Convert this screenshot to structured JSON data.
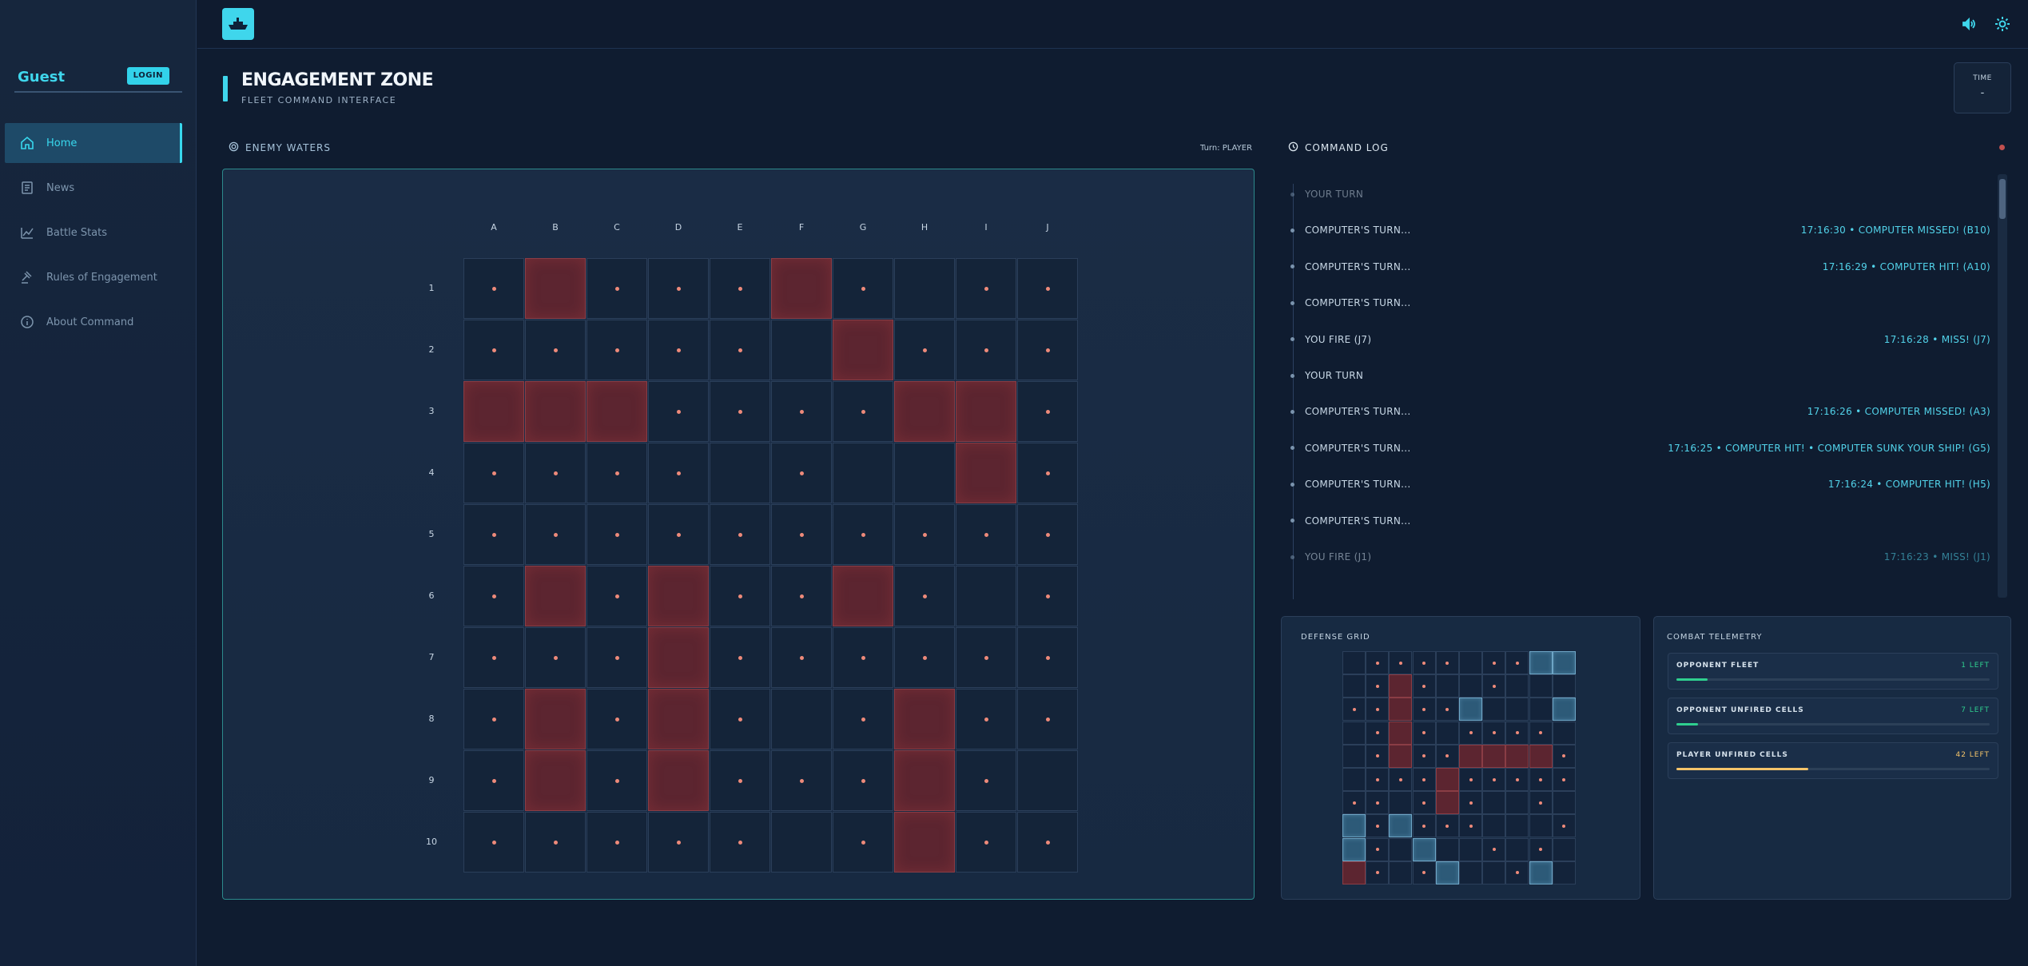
{
  "sidebar": {
    "user_name": "Guest",
    "login_label": "LOGIN",
    "items": [
      {
        "label": "Home",
        "icon": "home-icon",
        "active": true
      },
      {
        "label": "News",
        "icon": "news-icon",
        "active": false
      },
      {
        "label": "Battle Stats",
        "icon": "chart-icon",
        "active": false
      },
      {
        "label": "Rules of Engagement",
        "icon": "gavel-icon",
        "active": false
      },
      {
        "label": "About Command",
        "icon": "info-icon",
        "active": false
      }
    ]
  },
  "topbar": {
    "logo_icon": "ship-icon",
    "icons": [
      "volume-icon",
      "gear-icon"
    ]
  },
  "header": {
    "title": "ENGAGEMENT ZONE",
    "subtitle": "FLEET COMMAND INTERFACE",
    "time_label": "TIME",
    "time_value": "-"
  },
  "enemy": {
    "section_title": "ENEMY WATERS",
    "turn_text": "Turn: PLAYER",
    "columns": [
      "A",
      "B",
      "C",
      "D",
      "E",
      "F",
      "G",
      "H",
      "I",
      "J"
    ],
    "rows": [
      "1",
      "2",
      "3",
      "4",
      "5",
      "6",
      "7",
      "8",
      "9",
      "10"
    ],
    "grid": [
      "dhdddhdedd",
      "ddddd hddd",
      "hhhddddihd",
      "ddddedeehd",
      "dddddddddd",
      "dhdhddhded",
      "dddhdddddd",
      "dhdhdedhdd",
      "dhdhdddhde",
      "dddddedhdd"
    ]
  },
  "log": {
    "title": "COMMAND LOG",
    "entries": [
      {
        "left": "YOUR TURN",
        "right": ""
      },
      {
        "left": "COMPUTER'S TURN...",
        "right": "17:16:30 • COMPUTER MISSED! (B10)"
      },
      {
        "left": "COMPUTER'S TURN...",
        "right": "17:16:29 • COMPUTER HIT! (A10)"
      },
      {
        "left": "COMPUTER'S TURN...",
        "right": ""
      },
      {
        "left": "YOU FIRE (J7)",
        "right": "17:16:28 • MISS! (J7)"
      },
      {
        "left": "YOUR TURN",
        "right": ""
      },
      {
        "left": "COMPUTER'S TURN...",
        "right": "17:16:26 • COMPUTER MISSED! (A3)"
      },
      {
        "left": "COMPUTER'S TURN...",
        "right": "17:16:25 • COMPUTER HIT! • COMPUTER SUNK YOUR SHIP! (G5)"
      },
      {
        "left": "COMPUTER'S TURN...",
        "right": "17:16:24 • COMPUTER HIT! (H5)"
      },
      {
        "left": "COMPUTER'S TURN...",
        "right": ""
      },
      {
        "left": "YOU FIRE (J1)",
        "right": "17:16:23 • MISS! (J1)"
      }
    ]
  },
  "defense": {
    "title": "DEFENSE GRID",
    "grid": [
      "eddddeddss",
      "edhdeedeee",
      "ddhddseees",
      "edhdedddde",
      "edhddhhhhd",
      "edddhddddd",
      "ddedhdeede",
      "sdsdddeeed",
      "sdeseedede",
      "hdedseedse"
    ]
  },
  "telemetry": {
    "title": "COMBAT TELEMETRY",
    "cards": [
      {
        "label": "OPPONENT FLEET",
        "value": "1 LEFT",
        "fraction": 0.1,
        "color": "#2fcf8f",
        "value_color": "#2fcf8f"
      },
      {
        "label": "OPPONENT UNFIRED CELLS",
        "value": "7 LEFT",
        "fraction": 0.07,
        "color": "#2fcf8f",
        "value_color": "#2fcf8f"
      },
      {
        "label": "PLAYER UNFIRED CELLS",
        "value": "42 LEFT",
        "fraction": 0.42,
        "color": "#f4c46a",
        "value_color": "#f4c46a"
      }
    ]
  }
}
